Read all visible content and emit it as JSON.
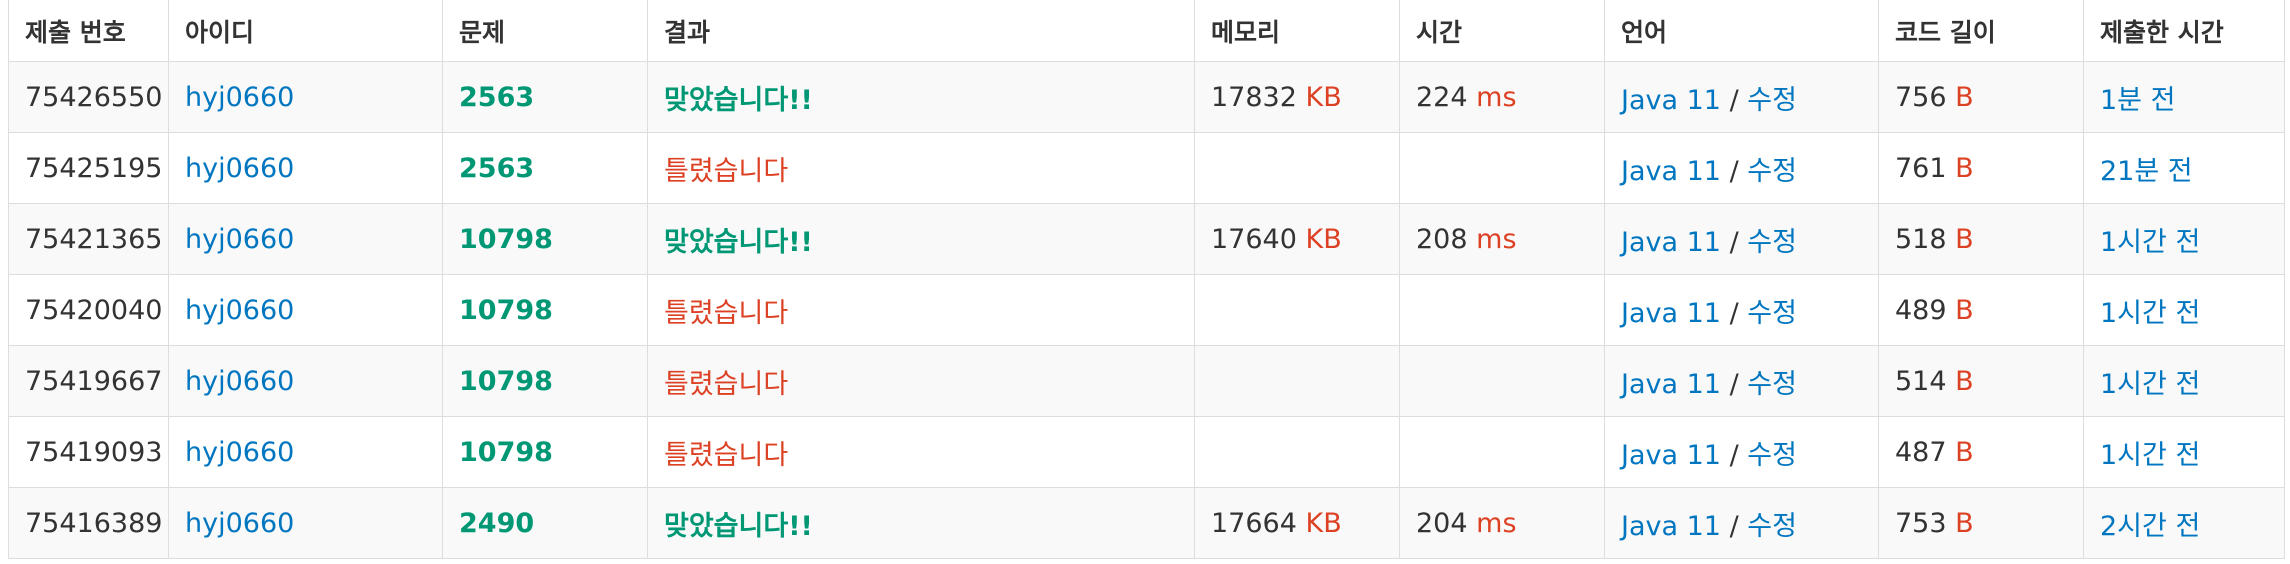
{
  "headers": [
    "제출 번호",
    "아이디",
    "문제",
    "결과",
    "메모리",
    "시간",
    "언어",
    "코드 길이",
    "제출한 시간"
  ],
  "units": {
    "memory": "KB",
    "time": "ms",
    "code": "B"
  },
  "lang_sep": "/",
  "rows": [
    {
      "id": "75426550",
      "user": "hyj0660",
      "problem": "2563",
      "result": "맞았습니다!!",
      "result_status": "accepted",
      "memory": "17832",
      "time": "224",
      "lang": "Java 11",
      "edit": "수정",
      "code_len": "756",
      "submitted": "1분 전"
    },
    {
      "id": "75425195",
      "user": "hyj0660",
      "problem": "2563",
      "result": "틀렸습니다",
      "result_status": "wrong",
      "memory": "",
      "time": "",
      "lang": "Java 11",
      "edit": "수정",
      "code_len": "761",
      "submitted": "21분 전"
    },
    {
      "id": "75421365",
      "user": "hyj0660",
      "problem": "10798",
      "result": "맞았습니다!!",
      "result_status": "accepted",
      "memory": "17640",
      "time": "208",
      "lang": "Java 11",
      "edit": "수정",
      "code_len": "518",
      "submitted": "1시간 전"
    },
    {
      "id": "75420040",
      "user": "hyj0660",
      "problem": "10798",
      "result": "틀렸습니다",
      "result_status": "wrong",
      "memory": "",
      "time": "",
      "lang": "Java 11",
      "edit": "수정",
      "code_len": "489",
      "submitted": "1시간 전"
    },
    {
      "id": "75419667",
      "user": "hyj0660",
      "problem": "10798",
      "result": "틀렸습니다",
      "result_status": "wrong",
      "memory": "",
      "time": "",
      "lang": "Java 11",
      "edit": "수정",
      "code_len": "514",
      "submitted": "1시간 전"
    },
    {
      "id": "75419093",
      "user": "hyj0660",
      "problem": "10798",
      "result": "틀렸습니다",
      "result_status": "wrong",
      "memory": "",
      "time": "",
      "lang": "Java 11",
      "edit": "수정",
      "code_len": "487",
      "submitted": "1시간 전"
    },
    {
      "id": "75416389",
      "user": "hyj0660",
      "problem": "2490",
      "result": "맞았습니다!!",
      "result_status": "accepted",
      "memory": "17664",
      "time": "204",
      "lang": "Java 11",
      "edit": "수정",
      "code_len": "753",
      "submitted": "2시간 전"
    }
  ],
  "colors": {
    "link": "#0076c0",
    "accepted": "#009874",
    "wrong": "#dd4124",
    "unit": "#dd4124",
    "border": "#dddddd",
    "stripe": "#f9f9f9"
  }
}
